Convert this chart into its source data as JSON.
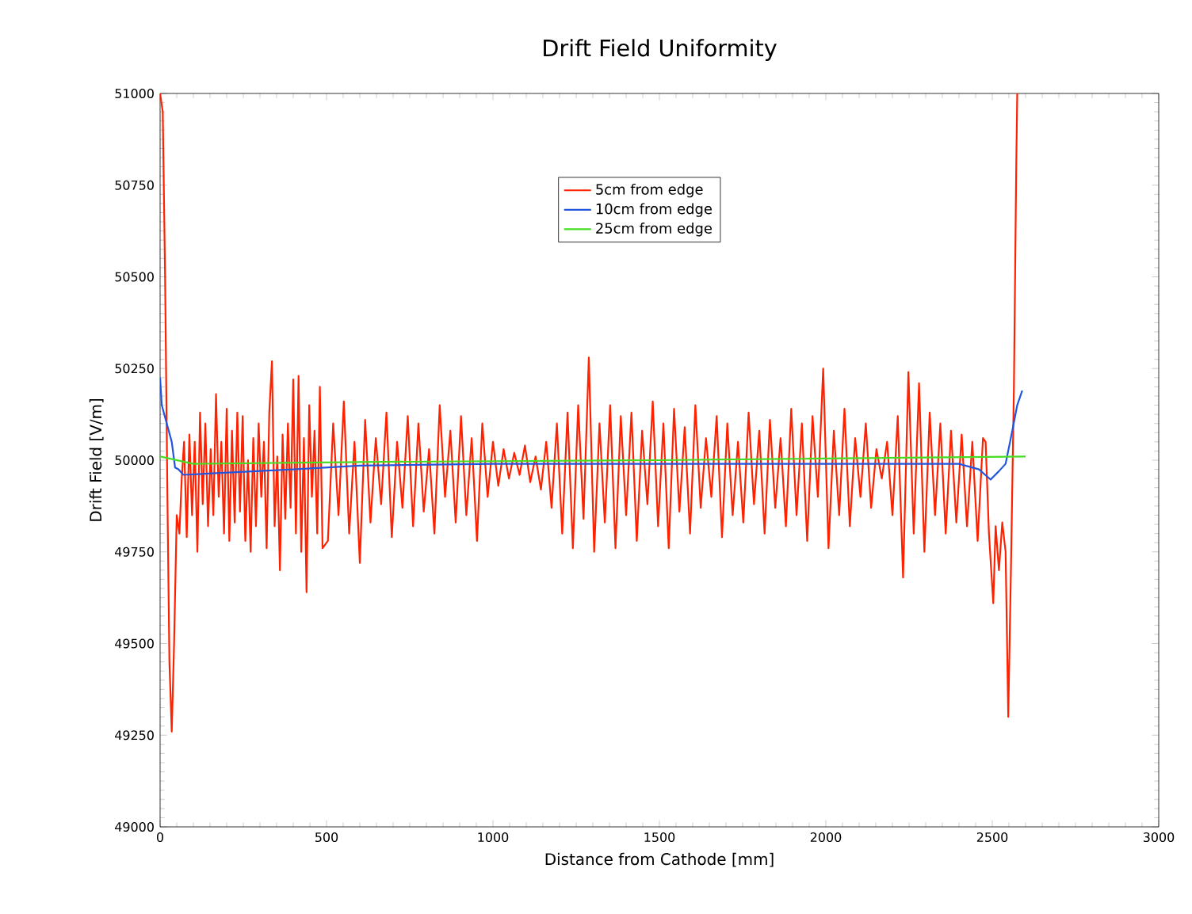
{
  "chart_data": {
    "type": "line",
    "title": "Drift Field Uniformity",
    "xlabel": "Distance from Cathode [mm]",
    "ylabel": "Drift Field [V/m]",
    "xlim": [
      0,
      3000
    ],
    "xticks": [
      0,
      500,
      1000,
      1500,
      2000,
      2500,
      3000
    ],
    "ylim": [
      49000,
      51000
    ],
    "yticks": [
      49000,
      49250,
      49500,
      49750,
      50000,
      50250,
      50500,
      50750,
      51000
    ],
    "legend": "top",
    "grid": false,
    "marker": "none",
    "line_style": "solid",
    "series": [
      {
        "name": "5cm from edge",
        "color": "#ff2200",
        "x": [
          0,
          8,
          15,
          22,
          28,
          35,
          42,
          50,
          58,
          65,
          72,
          80,
          88,
          96,
          104,
          112,
          120,
          128,
          136,
          144,
          152,
          160,
          168,
          176,
          184,
          192,
          200,
          208,
          216,
          224,
          232,
          240,
          248,
          256,
          264,
          272,
          280,
          288,
          296,
          304,
          312,
          320,
          328,
          336,
          344,
          352,
          360,
          368,
          376,
          384,
          392,
          400,
          408,
          416,
          424,
          432,
          440,
          448,
          456,
          464,
          472,
          480,
          488,
          504,
          520,
          536,
          552,
          568,
          584,
          600,
          616,
          632,
          648,
          664,
          680,
          696,
          712,
          728,
          744,
          760,
          776,
          792,
          808,
          824,
          840,
          856,
          872,
          888,
          904,
          920,
          936,
          952,
          968,
          984,
          1000,
          1016,
          1032,
          1048,
          1064,
          1080,
          1096,
          1112,
          1128,
          1144,
          1160,
          1176,
          1192,
          1208,
          1224,
          1240,
          1256,
          1272,
          1288,
          1304,
          1320,
          1336,
          1352,
          1368,
          1384,
          1400,
          1416,
          1432,
          1448,
          1464,
          1480,
          1496,
          1512,
          1528,
          1544,
          1560,
          1576,
          1592,
          1608,
          1624,
          1640,
          1656,
          1672,
          1688,
          1704,
          1720,
          1736,
          1752,
          1768,
          1784,
          1800,
          1816,
          1832,
          1848,
          1864,
          1880,
          1896,
          1912,
          1928,
          1944,
          1960,
          1976,
          1992,
          2008,
          2024,
          2040,
          2056,
          2072,
          2088,
          2104,
          2120,
          2136,
          2152,
          2168,
          2184,
          2200,
          2216,
          2232,
          2248,
          2264,
          2280,
          2296,
          2312,
          2328,
          2344,
          2360,
          2376,
          2392,
          2408,
          2424,
          2440,
          2456,
          2472,
          2480,
          2490,
          2503,
          2510,
          2520,
          2530,
          2540,
          2548,
          2556,
          2565,
          2572,
          2575
        ],
        "values": [
          51000,
          50950,
          50500,
          49900,
          49450,
          49260,
          49500,
          49850,
          49800,
          49950,
          50050,
          49790,
          50070,
          49850,
          50050,
          49750,
          50130,
          49880,
          50100,
          49820,
          50030,
          49850,
          50180,
          49900,
          50050,
          49800,
          50140,
          49780,
          50080,
          49830,
          50130,
          49860,
          50120,
          49780,
          50000,
          49750,
          50060,
          49820,
          50100,
          49900,
          50050,
          49760,
          50130,
          50270,
          49820,
          50010,
          49700,
          50070,
          49840,
          50100,
          49870,
          50220,
          49800,
          50230,
          49750,
          50060,
          49640,
          50150,
          49900,
          50080,
          49800,
          50200,
          49760,
          49780,
          50100,
          49850,
          50160,
          49800,
          50050,
          49720,
          50110,
          49830,
          50060,
          49880,
          50130,
          49790,
          50050,
          49870,
          50120,
          49820,
          50100,
          49860,
          50030,
          49800,
          50150,
          49900,
          50080,
          49830,
          50120,
          49850,
          50060,
          49780,
          50100,
          49900,
          50050,
          49930,
          50030,
          49950,
          50020,
          49960,
          50040,
          49940,
          50010,
          49920,
          50050,
          49870,
          50100,
          49800,
          50130,
          49760,
          50150,
          49840,
          50280,
          49750,
          50100,
          49830,
          50150,
          49760,
          50120,
          49850,
          50130,
          49780,
          50080,
          49880,
          50160,
          49820,
          50100,
          49760,
          50140,
          49860,
          50090,
          49800,
          50150,
          49870,
          50060,
          49900,
          50120,
          49790,
          50100,
          49850,
          50050,
          49830,
          50130,
          49880,
          50080,
          49800,
          50110,
          49870,
          50060,
          49820,
          50140,
          49850,
          50100,
          49780,
          50120,
          49900,
          50250,
          49760,
          50080,
          49850,
          50140,
          49820,
          50060,
          49900,
          50100,
          49870,
          50030,
          49950,
          50050,
          49850,
          50120,
          49680,
          50240,
          49800,
          50210,
          49750,
          50130,
          49850,
          50100,
          49800,
          50080,
          49830,
          50070,
          49820,
          50050,
          49780,
          50060,
          50050,
          49800,
          49610,
          49820,
          49700,
          49830,
          49750,
          49300,
          49700,
          50200,
          50800,
          51000
        ]
      },
      {
        "name": "10cm from edge",
        "color": "#2255dd",
        "x": [
          0,
          5,
          20,
          35,
          45,
          55,
          70,
          180,
          400,
          600,
          1000,
          2400,
          2460,
          2495,
          2520,
          2540,
          2560,
          2575,
          2590
        ],
        "values": [
          50225,
          50150,
          50100,
          50050,
          49980,
          49975,
          49960,
          49965,
          49975,
          49985,
          49990,
          49990,
          49975,
          49947,
          49970,
          49990,
          50080,
          50150,
          50190
        ]
      },
      {
        "name": "25cm from edge",
        "color": "#44dd22",
        "x": [
          0,
          100,
          600,
          1500,
          2600
        ],
        "values": [
          50010,
          49990,
          49995,
          50000,
          50010
        ]
      }
    ]
  }
}
